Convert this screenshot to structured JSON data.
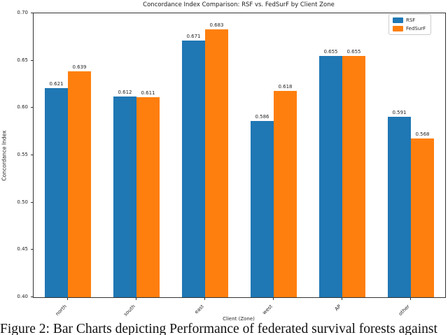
{
  "figure": {
    "caption": "Figure 2: Bar Charts depicting Performance of federated survival forests against"
  },
  "chart_data": {
    "type": "bar",
    "title": "Concordance Index Comparison: RSF vs. FedSurF by Client Zone",
    "xlabel": "Client (Zone)",
    "ylabel": "Concordance Index",
    "categories": [
      "north",
      "south",
      "east",
      "west",
      "AP",
      "other"
    ],
    "series": [
      {
        "name": "RSF",
        "color": "#1f77b4",
        "values": [
          0.621,
          0.612,
          0.671,
          0.586,
          0.655,
          0.591
        ]
      },
      {
        "name": "FedSurF",
        "color": "#ff7f0e",
        "values": [
          0.639,
          0.611,
          0.683,
          0.618,
          0.655,
          0.568
        ]
      }
    ],
    "ylim": [
      0.4,
      0.7
    ],
    "yticks": [
      "0.40",
      "0.45",
      "0.50",
      "0.55",
      "0.60",
      "0.65",
      "0.70"
    ],
    "grid": false,
    "legend_position": "upper right",
    "value_label_decimals": 3
  }
}
